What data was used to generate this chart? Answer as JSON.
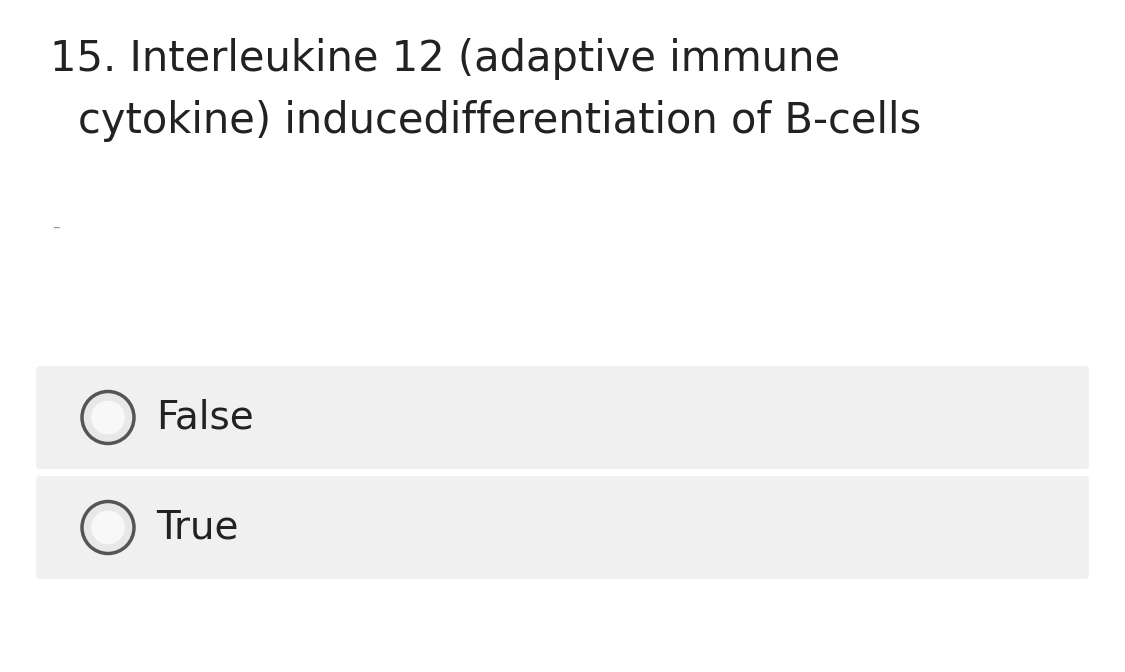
{
  "background_color": "#ffffff",
  "question_text_line1": "15. Interleukine 12 (adaptive immune",
  "question_text_line2": "cytokine) inducedifferentiation of B-cells",
  "options": [
    "False",
    "True"
  ],
  "option_box_color": "#f0f0f0",
  "option_text_color": "#222222",
  "question_text_color": "#222222",
  "circle_edge_color": "#555555",
  "circle_face_color": "#e8e8e8",
  "circle_inner_color": "#f5f5f5",
  "question_fontsize": 30,
  "option_fontsize": 28,
  "dash_fontsize": 11,
  "fig_width": 11.25,
  "fig_height": 6.72,
  "dpi": 100
}
